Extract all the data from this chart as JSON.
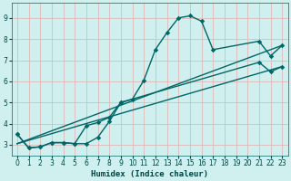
{
  "xlabel": "Humidex (Indice chaleur)",
  "xlim": [
    -0.5,
    23.5
  ],
  "ylim": [
    2.5,
    9.7
  ],
  "xticks": [
    0,
    1,
    2,
    3,
    4,
    5,
    6,
    7,
    8,
    9,
    10,
    11,
    12,
    13,
    14,
    15,
    16,
    17,
    18,
    19,
    20,
    21,
    22,
    23
  ],
  "yticks": [
    3,
    4,
    5,
    6,
    7,
    8,
    9
  ],
  "bg_color": "#cff0ee",
  "grid_color": "#e0b8b8",
  "line_color": "#006666",
  "line1_x": [
    0,
    1,
    2,
    3,
    4,
    5,
    6,
    7,
    8,
    9,
    10,
    11,
    12,
    13,
    14,
    15,
    16,
    17,
    21,
    22,
    23
  ],
  "line1_y": [
    3.5,
    2.85,
    2.9,
    3.1,
    3.1,
    3.05,
    3.05,
    3.35,
    4.1,
    5.0,
    5.15,
    6.05,
    7.5,
    8.3,
    9.0,
    9.1,
    8.85,
    7.5,
    7.9,
    7.2,
    7.7
  ],
  "line2_x": [
    0,
    1,
    2,
    3,
    4,
    5,
    6,
    7,
    8,
    9,
    21,
    22,
    23
  ],
  "line2_y": [
    3.5,
    2.85,
    2.9,
    3.1,
    3.1,
    3.05,
    3.9,
    4.05,
    4.3,
    5.0,
    6.9,
    6.45,
    6.7
  ],
  "line3_x": [
    0,
    23
  ],
  "line3_y": [
    3.05,
    7.7
  ],
  "line4_x": [
    0,
    23
  ],
  "line4_y": [
    3.05,
    6.7
  ]
}
